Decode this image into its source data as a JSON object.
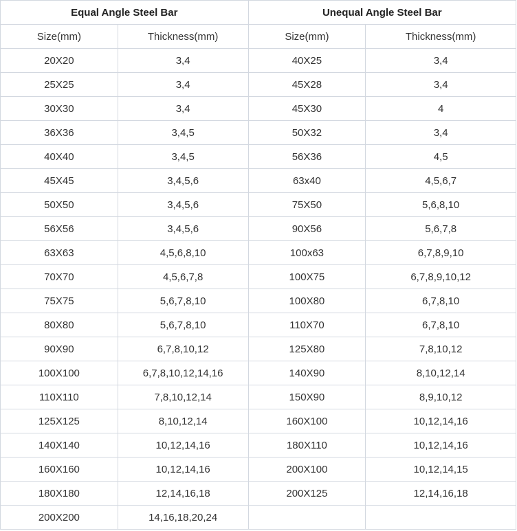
{
  "equal": {
    "title": "Equal Angle Steel Bar",
    "headers": [
      "Size(mm)",
      "Thickness(mm)"
    ],
    "rows": [
      [
        "20X20",
        "3,4"
      ],
      [
        "25X25",
        "3,4"
      ],
      [
        "30X30",
        "3,4"
      ],
      [
        "36X36",
        "3,4,5"
      ],
      [
        "40X40",
        "3,4,5"
      ],
      [
        "45X45",
        "3,4,5,6"
      ],
      [
        "50X50",
        "3,4,5,6"
      ],
      [
        "56X56",
        "3,4,5,6"
      ],
      [
        "63X63",
        "4,5,6,8,10"
      ],
      [
        "70X70",
        "4,5,6,7,8"
      ],
      [
        "75X75",
        "5,6,7,8,10"
      ],
      [
        "80X80",
        "5,6,7,8,10"
      ],
      [
        "90X90",
        "6,7,8,10,12"
      ],
      [
        "100X100",
        "6,7,8,10,12,14,16"
      ],
      [
        "110X110",
        "7,8,10,12,14"
      ],
      [
        "125X125",
        "8,10,12,14"
      ],
      [
        "140X140",
        "10,12,14,16"
      ],
      [
        "160X160",
        "10,12,14,16"
      ],
      [
        "180X180",
        "12,14,16,18"
      ],
      [
        "200X200",
        "14,16,18,20,24"
      ]
    ]
  },
  "unequal": {
    "title": "Unequal Angle Steel Bar",
    "headers": [
      "Size(mm)",
      "Thickness(mm)"
    ],
    "rows": [
      [
        "40X25",
        "3,4"
      ],
      [
        "45X28",
        "3,4"
      ],
      [
        "45X30",
        "4"
      ],
      [
        "50X32",
        "3,4"
      ],
      [
        "56X36",
        "4,5"
      ],
      [
        "63x40",
        "4,5,6,7"
      ],
      [
        "75X50",
        "5,6,8,10"
      ],
      [
        "90X56",
        "5,6,7,8"
      ],
      [
        "100x63",
        "6,7,8,9,10"
      ],
      [
        "100X75",
        "6,7,8,9,10,12"
      ],
      [
        "100X80",
        "6,7,8,10"
      ],
      [
        "110X70",
        "6,7,8,10"
      ],
      [
        "125X80",
        "7,8,10,12"
      ],
      [
        "140X90",
        "8,10,12,14"
      ],
      [
        "150X90",
        "8,9,10,12"
      ],
      [
        "160X100",
        "10,12,14,16"
      ],
      [
        "180X110",
        "10,12,14,16"
      ],
      [
        "200X100",
        "10,12,14,15"
      ],
      [
        "200X125",
        "12,14,16,18"
      ],
      [
        "",
        ""
      ]
    ]
  }
}
